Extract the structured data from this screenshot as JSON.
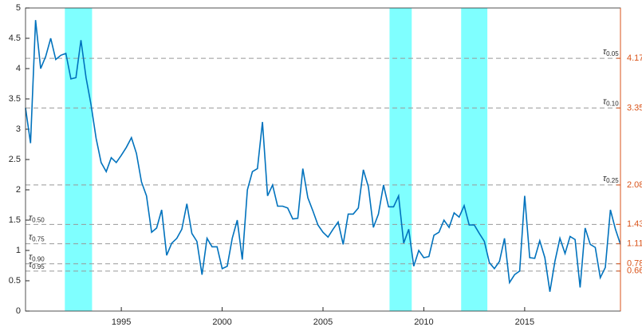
{
  "chart_data": {
    "type": "line",
    "x": [
      1990.25,
      1990.5,
      1990.75,
      1991,
      1991.25,
      1991.5,
      1991.75,
      1992,
      1992.25,
      1992.5,
      1992.75,
      1993,
      1993.25,
      1993.5,
      1993.75,
      1994,
      1994.25,
      1994.5,
      1994.75,
      1995,
      1995.25,
      1995.5,
      1995.75,
      1996,
      1996.25,
      1996.5,
      1996.75,
      1997,
      1997.25,
      1997.5,
      1997.75,
      1998,
      1998.25,
      1998.5,
      1998.75,
      1999,
      1999.25,
      1999.5,
      1999.75,
      2000,
      2000.25,
      2000.5,
      2000.75,
      2001,
      2001.25,
      2001.5,
      2001.75,
      2002,
      2002.25,
      2002.5,
      2002.75,
      2003,
      2003.25,
      2003.5,
      2003.75,
      2004,
      2004.25,
      2004.5,
      2004.75,
      2005,
      2005.25,
      2005.5,
      2005.75,
      2006,
      2006.25,
      2006.5,
      2006.75,
      2007,
      2007.25,
      2007.5,
      2007.75,
      2008,
      2008.25,
      2008.5,
      2008.75,
      2009,
      2009.25,
      2009.5,
      2009.75,
      2010,
      2010.25,
      2010.5,
      2010.75,
      2011,
      2011.25,
      2011.5,
      2011.75,
      2012,
      2012.25,
      2012.5,
      2012.75,
      2013,
      2013.25,
      2013.5,
      2013.75,
      2014,
      2014.25,
      2014.5,
      2014.75,
      2015,
      2015.25,
      2015.5,
      2015.75,
      2016,
      2016.25,
      2016.5,
      2016.75,
      2017,
      2017.25,
      2017.5,
      2017.75,
      2018,
      2018.25,
      2018.5,
      2018.75,
      2019,
      2019.25,
      2019.5,
      2019.75
    ],
    "series": [
      {
        "color": "#0072bd",
        "values": [
          3.35,
          2.77,
          4.8,
          4.0,
          4.2,
          4.5,
          4.15,
          4.22,
          4.25,
          3.83,
          3.85,
          4.47,
          3.85,
          3.4,
          2.85,
          2.45,
          2.3,
          2.53,
          2.45,
          2.57,
          2.7,
          2.86,
          2.6,
          2.13,
          1.9,
          1.3,
          1.37,
          1.67,
          0.92,
          1.12,
          1.2,
          1.35,
          1.77,
          1.28,
          1.15,
          0.6,
          1.2,
          1.06,
          1.06,
          0.7,
          0.74,
          1.2,
          1.5,
          0.85,
          2.0,
          2.3,
          2.35,
          3.12,
          1.9,
          2.08,
          1.73,
          1.73,
          1.7,
          1.52,
          1.53,
          2.35,
          1.87,
          1.65,
          1.42,
          1.3,
          1.22,
          1.35,
          1.47,
          1.1,
          1.6,
          1.6,
          1.7,
          2.33,
          2.05,
          1.38,
          1.6,
          2.08,
          1.72,
          1.72,
          1.9,
          1.12,
          1.35,
          0.74,
          1.0,
          0.88,
          0.9,
          1.25,
          1.3,
          1.5,
          1.38,
          1.62,
          1.55,
          1.74,
          1.42,
          1.42,
          1.28,
          1.15,
          0.8,
          0.7,
          0.82,
          1.2,
          0.47,
          0.6,
          0.66,
          1.9,
          0.88,
          0.87,
          1.16,
          0.88,
          0.32,
          0.82,
          1.2,
          0.95,
          1.23,
          1.18,
          0.39,
          1.37,
          1.1,
          1.05,
          0.55,
          0.72,
          1.67,
          1.35,
          1.1
        ]
      }
    ],
    "shaded": [
      [
        1992.2,
        1993.55
      ],
      [
        2008.3,
        2009.4
      ],
      [
        2011.85,
        2013.15
      ]
    ],
    "shade_color": "#7fffff",
    "xlim": [
      1990.25,
      2019.75
    ],
    "xticks": [
      1995,
      2000,
      2005,
      2010,
      2015
    ],
    "ylim": [
      0,
      5
    ],
    "yticks": [
      0,
      0.5,
      1,
      1.5,
      2,
      2.5,
      3,
      3.5,
      4,
      4.5,
      5
    ],
    "y2lim": [
      0,
      5
    ],
    "y2ticks": [
      0.66,
      0.78,
      1.11,
      1.43,
      2.08,
      3.35,
      4.17
    ],
    "y2color": "#d95319",
    "quantile_symbol": "τ",
    "quantile_labels": [
      "0.05",
      "0.10",
      "0.25",
      "0.50",
      "0.75",
      "0.90",
      "0.95"
    ]
  }
}
